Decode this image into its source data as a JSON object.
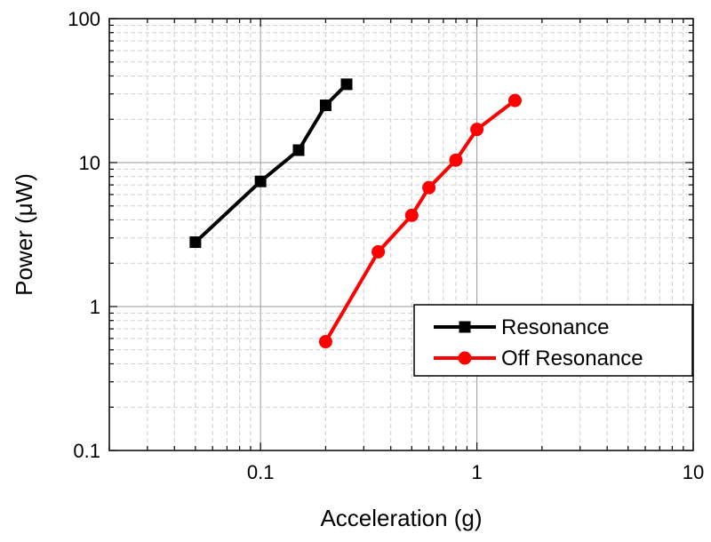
{
  "chart_data": {
    "type": "line",
    "title": "",
    "xlabel": "Acceleration (g)",
    "ylabel": "Power (μW)",
    "xscale": "log",
    "yscale": "log",
    "xlim": [
      0.02,
      10
    ],
    "ylim": [
      0.1,
      100
    ],
    "grid": true,
    "legend_position": "bottom-right",
    "xticks": [
      {
        "value": 0.1,
        "label": "0.1"
      },
      {
        "value": 1,
        "label": "1"
      },
      {
        "value": 10,
        "label": "10"
      }
    ],
    "yticks": [
      {
        "value": 0.1,
        "label": "0.1"
      },
      {
        "value": 1,
        "label": "1"
      },
      {
        "value": 10,
        "label": "10"
      },
      {
        "value": 100,
        "label": "100"
      }
    ],
    "series": [
      {
        "name": "Resonance",
        "color": "#000000",
        "marker": "square",
        "points": [
          {
            "x": 0.05,
            "y": 2.8
          },
          {
            "x": 0.1,
            "y": 7.4
          },
          {
            "x": 0.15,
            "y": 12.2
          },
          {
            "x": 0.2,
            "y": 25
          },
          {
            "x": 0.25,
            "y": 35
          }
        ]
      },
      {
        "name": "Off Resonance",
        "color": "#ff0000",
        "marker": "circle",
        "points": [
          {
            "x": 0.2,
            "y": 0.57
          },
          {
            "x": 0.35,
            "y": 2.4
          },
          {
            "x": 0.5,
            "y": 4.3
          },
          {
            "x": 0.6,
            "y": 6.7
          },
          {
            "x": 0.8,
            "y": 10.4
          },
          {
            "x": 1.0,
            "y": 17
          },
          {
            "x": 1.5,
            "y": 27
          }
        ]
      }
    ]
  }
}
